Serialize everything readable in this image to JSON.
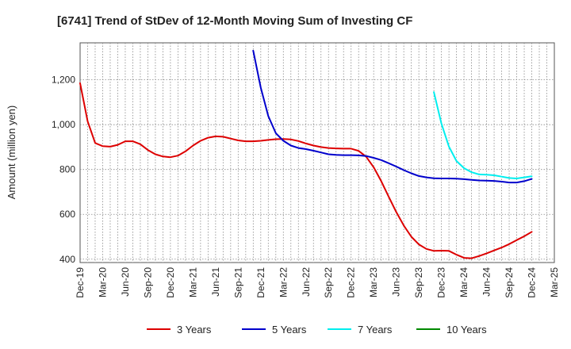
{
  "chart_data": {
    "type": "line",
    "title": "[6741]  Trend of StDev of 12-Month Moving Sum of Investing CF",
    "ylabel": "Amount (million yen)",
    "xlabel": "",
    "x_range": [
      "2019-12",
      "2025-03"
    ],
    "ylim": [
      385,
      1365
    ],
    "y_ticks": [
      400,
      600,
      800,
      1000,
      1200
    ],
    "y_tick_labels": [
      "400",
      "600",
      "800",
      "1,000",
      "1,200"
    ],
    "x_tick_labels": [
      "Dec-19",
      "Mar-20",
      "Jun-20",
      "Sep-20",
      "Dec-20",
      "Mar-21",
      "Jun-21",
      "Sep-21",
      "Dec-21",
      "Mar-22",
      "Jun-22",
      "Sep-22",
      "Dec-22",
      "Mar-23",
      "Jun-23",
      "Sep-23",
      "Dec-23",
      "Mar-24",
      "Jun-24",
      "Sep-24",
      "Dec-24",
      "Mar-25"
    ],
    "grid": true,
    "legend_position": "bottom",
    "series": [
      {
        "name": "3 Years",
        "color": "#dd0000",
        "start": "2019-12",
        "values": [
          1185,
          1015,
          918,
          904,
          902,
          910,
          926,
          926,
          913,
          887,
          868,
          858,
          855,
          862,
          881,
          907,
          928,
          942,
          948,
          946,
          938,
          930,
          926,
          926,
          928,
          932,
          935,
          936,
          934,
          927,
          916,
          907,
          900,
          896,
          894,
          893,
          893,
          883,
          857,
          810,
          748,
          678,
          610,
          550,
          500,
          466,
          446,
          437,
          438,
          437,
          420,
          406,
          404,
          414,
          426,
          439,
          452,
          467,
          485,
          502,
          522
        ]
      },
      {
        "name": "5 Years",
        "color": "#0000cc",
        "start": "2021-11",
        "values": [
          1330,
          1165,
          1038,
          962,
          928,
          907,
          896,
          891,
          884,
          876,
          868,
          865,
          864,
          864,
          863,
          860,
          852,
          842,
          828,
          813,
          797,
          783,
          771,
          765,
          761,
          760,
          760,
          759,
          757,
          754,
          751,
          750,
          749,
          746,
          742,
          742,
          748,
          758
        ]
      },
      {
        "name": "7 Years",
        "color": "#00eeee",
        "start": "2023-11",
        "values": [
          1145,
          1005,
          902,
          838,
          806,
          788,
          778,
          777,
          774,
          768,
          762,
          760,
          765,
          770
        ]
      },
      {
        "name": "10 Years",
        "color": "#008800",
        "start": "2023-11",
        "values": []
      }
    ]
  }
}
